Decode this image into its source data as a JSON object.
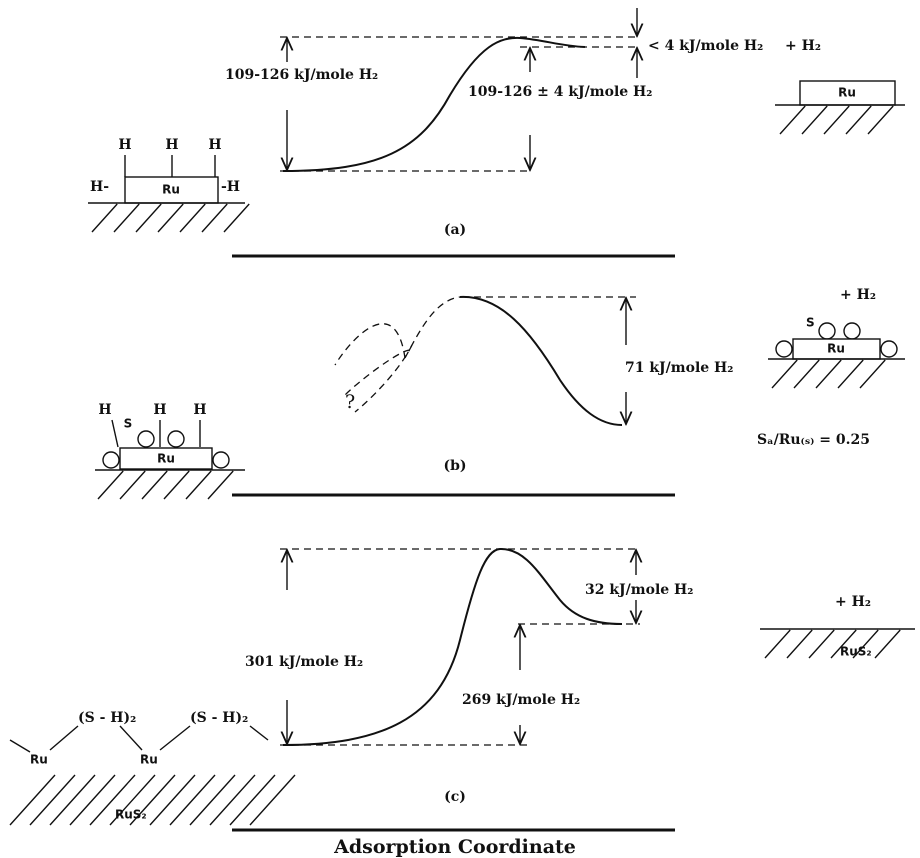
{
  "panel_a": {
    "label": "(a)",
    "left_energy": "109-126 kJ/mole H₂",
    "right_energy": "109-126 ± 4 kJ/mole H₂",
    "barrier": "< 4 kJ/mole H₂",
    "product_gas": "+ H₂",
    "product_surface": "Ru",
    "reactant": {
      "metal": "Ru",
      "h_top": [
        "H",
        "H",
        "H"
      ],
      "h_left": "H-",
      "h_right": "-H"
    }
  },
  "panel_b": {
    "label": "(b)",
    "energy": "71 kJ/mole H₂",
    "unknown": "?",
    "product_gas": "+ H₂",
    "product_sulfur": "S",
    "product_surface": "Ru",
    "coverage": "Sₐ/Ru₍ₛ₎ = 0.25",
    "reactant": {
      "metal": "Ru",
      "h": [
        "H",
        "H",
        "H"
      ],
      "sulfur": "S"
    }
  },
  "panel_c": {
    "label": "(c)",
    "left_energy": "301 kJ/mole H₂",
    "right_energy": "269 kJ/mole H₂",
    "barrier": "32 kJ/mole H₂",
    "product_gas": "+ H₂",
    "product_surface": "RuS₂",
    "reactant": {
      "metals": [
        "Ru",
        "Ru"
      ],
      "groups": [
        "(S - H)₂",
        "(S - H)₂"
      ],
      "surface": "RuS₂"
    }
  },
  "x_axis_label": "Adsorption Coordinate"
}
